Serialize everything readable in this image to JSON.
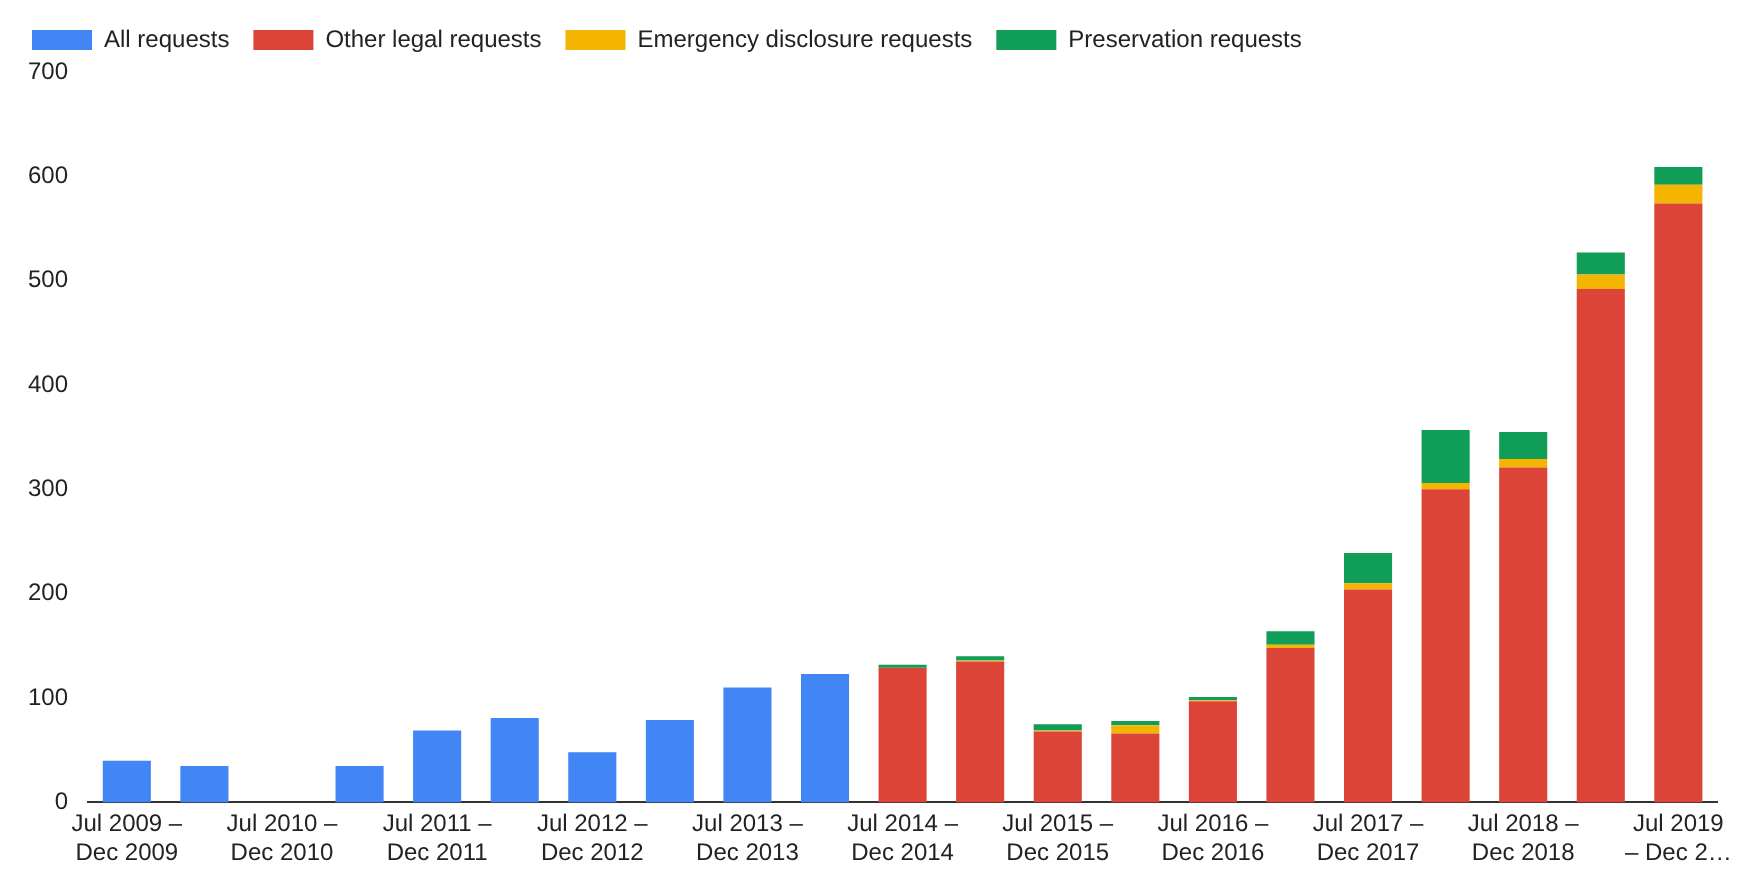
{
  "chart_data": {
    "type": "bar",
    "stacked": true,
    "legend": "top left",
    "grid": false,
    "categories": [
      "Jul 2009 –\nDec 2009",
      null,
      "Jul 2010 –\nDec 2010",
      null,
      "Jul 2011 –\nDec 2011",
      null,
      "Jul 2012 –\nDec 2012",
      null,
      "Jul 2013 –\nDec 2013",
      null,
      "Jul 2014 –\nDec 2014",
      null,
      "Jul 2015 –\nDec 2015",
      null,
      "Jul 2016 –\nDec 2016",
      null,
      "Jul 2017 –\nDec 2017",
      null,
      "Jul 2018 –\nDec 2018",
      null,
      "Jul 2019\n– Dec 2…"
    ],
    "ylim": [
      0,
      700
    ],
    "yticks": [
      0,
      100,
      200,
      300,
      400,
      500,
      600,
      700
    ],
    "series": [
      {
        "name": "All requests",
        "color": "#4285f4",
        "values": [
          40,
          35,
          0,
          35,
          69,
          81,
          48,
          79,
          110,
          123,
          null,
          null,
          null,
          null,
          null,
          null,
          null,
          null,
          null,
          null,
          null
        ]
      },
      {
        "name": "Other legal requests",
        "color": "#db4437",
        "values": [
          null,
          null,
          null,
          null,
          null,
          null,
          null,
          null,
          null,
          null,
          129,
          135,
          68,
          66,
          97,
          148,
          204,
          300,
          321,
          492,
          574
        ]
      },
      {
        "name": "Emergency disclosure requests",
        "color": "#f4b400",
        "values": [
          null,
          null,
          null,
          null,
          null,
          null,
          null,
          null,
          null,
          null,
          0,
          1,
          1,
          8,
          1,
          3,
          6,
          6,
          8,
          14,
          18
        ]
      },
      {
        "name": "Preservation requests",
        "color": "#0f9d58",
        "values": [
          null,
          null,
          null,
          null,
          null,
          null,
          null,
          null,
          null,
          null,
          3,
          4,
          6,
          4,
          3,
          13,
          29,
          51,
          26,
          21,
          17
        ]
      }
    ]
  }
}
